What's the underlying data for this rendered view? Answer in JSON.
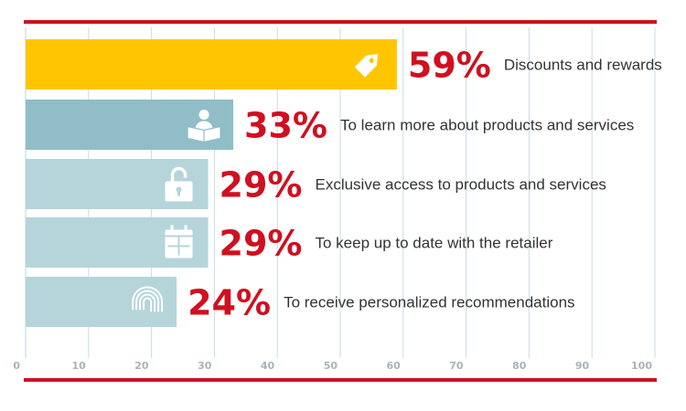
{
  "chart_data": {
    "type": "bar",
    "orientation": "horizontal",
    "title": "",
    "xlabel": "",
    "ylabel": "",
    "xlim": [
      0,
      100
    ],
    "x_ticks": [
      "0",
      "10",
      "20",
      "30",
      "40",
      "50",
      "60",
      "70",
      "80",
      "90",
      "100"
    ],
    "grid": true,
    "bars": [
      {
        "value": 59,
        "value_label": "59%",
        "label": "Discounts and rewards",
        "icon": "tag-icon",
        "color": "#ffc600"
      },
      {
        "value": 33,
        "value_label": "33%",
        "label": "To learn more about products and services",
        "icon": "reading-person-icon",
        "color": "#90bdc6"
      },
      {
        "value": 29,
        "value_label": "29%",
        "label": "Exclusive access to products and services",
        "icon": "unlock-icon",
        "color": "#b5d5da"
      },
      {
        "value": 29,
        "value_label": "29%",
        "label": "To keep up to date with the retailer",
        "icon": "calendar-icon",
        "color": "#b5d5da"
      },
      {
        "value": 24,
        "value_label": "24%",
        "label": "To receive personalized recommendations",
        "icon": "fingerprint-icon",
        "color": "#b5d5da"
      }
    ],
    "colors": {
      "value_text": "#cf1020",
      "rule": "#cf1020",
      "grid": "#c8dde2"
    }
  }
}
